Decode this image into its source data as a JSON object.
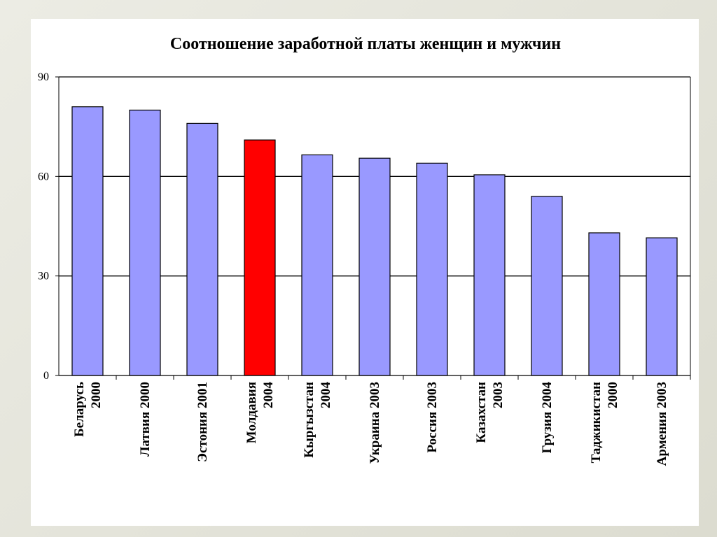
{
  "colors": {
    "bar_default": "#9999ff",
    "bar_highlight": "#ff0000",
    "outline": "#000000"
  },
  "chart_data": {
    "type": "bar",
    "title": "Соотношение заработной платы женщин и мужчин",
    "categories": [
      [
        "Беларусь",
        "2000"
      ],
      [
        "Латвия 2000"
      ],
      [
        "Эстония 2001"
      ],
      [
        "Молдавия",
        "2004"
      ],
      [
        "Кыргызстан",
        "2004"
      ],
      [
        "Украина 2003"
      ],
      [
        "Россия 2003"
      ],
      [
        "Казахстан",
        "2003"
      ],
      [
        "Грузия 2004"
      ],
      [
        "Таджикистан",
        "2000"
      ],
      [
        "Армения 2003"
      ]
    ],
    "values": [
      81,
      80,
      76,
      71,
      66.5,
      65.5,
      64,
      60.5,
      54,
      43,
      41.5
    ],
    "highlight_index": 3,
    "ylim": [
      0,
      90
    ],
    "yticks": [
      0,
      30,
      60,
      90
    ],
    "grid": true,
    "legend": "none"
  }
}
